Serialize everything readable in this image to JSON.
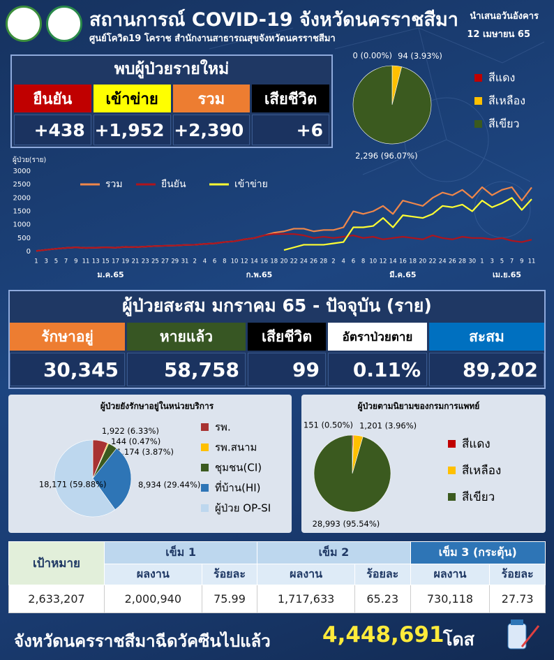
{
  "header": {
    "title": "สถานการณ์ COVID-19 จังหวัดนครราชสีมา",
    "subtitle": "ศูนย์โควิด19 โคราช สำนักงานสาธารณสุขจังหวัดนครราชสีมา",
    "date_label": "นำเสนอวันอังคาร",
    "date": "12 เมษายน 65"
  },
  "new_cases": {
    "title": "พบผู้ป่วยรายใหม่",
    "headers": [
      "ยืนยัน",
      "เข้าข่าย",
      "รวม",
      "เสียชีวิต"
    ],
    "values": [
      "+438",
      "+1,952",
      "+2,390",
      "+6"
    ]
  },
  "cumulative": {
    "title": "ผู้ป่วยสะสม มกราคม 65 - ปัจจุบัน (ราย)",
    "headers": [
      "รักษาอยู่",
      "หายแล้ว",
      "เสียชีวิต",
      "อัตราป่วยตาย",
      "สะสม"
    ],
    "values": [
      "30,345",
      "58,758",
      "99",
      "0.11%",
      "89,202"
    ]
  },
  "vaccine": {
    "target_label": "เป้าหมาย",
    "doses": [
      "เข็ม 1",
      "เข็ม 2",
      "เข็ม 3 (กระตุ้น)"
    ],
    "subheaders": [
      "ผลงาน",
      "ร้อยละ",
      "ผลงาน",
      "ร้อยละ",
      "ผลงาน",
      "ร้อยละ"
    ],
    "row": [
      "2,633,207",
      "2,000,940",
      "75.99",
      "1,717,633",
      "65.23",
      "730,118",
      "27.73"
    ]
  },
  "footer": {
    "text": "จังหวัดนครราชสีมาฉีดวัคซีนไปแล้ว",
    "total": "4,448,691",
    "unit": "โดส"
  },
  "chart_data": [
    {
      "type": "pie",
      "categories": [
        "สีแดง",
        "สีเหลือง",
        "สีเขียว"
      ],
      "values": [
        0,
        94,
        2296
      ],
      "value_labels": [
        "0 (0.00%)",
        "94 (3.93%)",
        "2,296 (96.07%)"
      ],
      "colors": [
        "#c00000",
        "#ffc000",
        "#3b5a1f"
      ]
    },
    {
      "type": "line",
      "y_label": "ผู้ป่วย(ราย)",
      "categories": [
        "1",
        "3",
        "5",
        "7",
        "9",
        "11",
        "13",
        "15",
        "17",
        "19",
        "21",
        "23",
        "25",
        "27",
        "29",
        "31",
        "2",
        "4",
        "6",
        "8",
        "10",
        "12",
        "14",
        "16",
        "18",
        "20",
        "22",
        "24",
        "26",
        "28",
        "2",
        "4",
        "6",
        "8",
        "10",
        "12",
        "14",
        "16",
        "18",
        "20",
        "22",
        "24",
        "26",
        "28",
        "30",
        "1",
        "3",
        "5",
        "7",
        "9",
        "11"
      ],
      "month_labels": [
        "ม.ค.65",
        "ก.พ.65",
        "มี.ค.65",
        "เม.ย.65"
      ],
      "series": [
        {
          "name": "รวม",
          "color": "#f0874a",
          "values": [
            20,
            60,
            100,
            130,
            150,
            130,
            140,
            150,
            140,
            170,
            160,
            180,
            200,
            210,
            220,
            240,
            250,
            280,
            300,
            350,
            380,
            450,
            500,
            600,
            700,
            750,
            850,
            850,
            750,
            800,
            800,
            900,
            1500,
            1400,
            1500,
            1700,
            1400,
            1900,
            1800,
            1700,
            2000,
            2200,
            2100,
            2300,
            2000,
            2400,
            2100,
            2300,
            2400,
            1900,
            2390
          ]
        },
        {
          "name": "ยืนยัน",
          "color": "#b0141c",
          "values": [
            20,
            60,
            100,
            130,
            150,
            130,
            140,
            150,
            140,
            170,
            160,
            180,
            200,
            210,
            220,
            240,
            250,
            280,
            300,
            350,
            380,
            450,
            500,
            600,
            650,
            650,
            650,
            600,
            500,
            550,
            500,
            550,
            600,
            500,
            550,
            450,
            500,
            550,
            500,
            450,
            600,
            500,
            450,
            550,
            500,
            500,
            450,
            500,
            400,
            350,
            438
          ]
        },
        {
          "name": "เข้าข่าย",
          "color": "#ffff33",
          "values": [
            null,
            null,
            null,
            null,
            null,
            null,
            null,
            null,
            null,
            null,
            null,
            null,
            null,
            null,
            null,
            null,
            null,
            null,
            null,
            null,
            null,
            null,
            null,
            null,
            null,
            50,
            150,
            250,
            250,
            250,
            300,
            350,
            900,
            900,
            950,
            1250,
            900,
            1350,
            1300,
            1250,
            1400,
            1700,
            1650,
            1750,
            1500,
            1900,
            1650,
            1800,
            2000,
            1550,
            1952
          ]
        }
      ],
      "ylim": [
        0,
        3000
      ],
      "yticks": [
        0,
        500,
        1000,
        1500,
        2000,
        2500,
        3000
      ],
      "grid": false
    },
    {
      "type": "pie",
      "title": "ผู้ป่วยยังรักษาอยู่ในหน่วยบริการ",
      "categories": [
        "รพ.",
        "รพ.สนาม",
        "ชุมชน(CI)",
        "ที่บ้าน(HI)",
        "ผู้ป่วย OP-SI"
      ],
      "values": [
        1922,
        144,
        1174,
        8934,
        18171
      ],
      "value_labels": [
        "1,922 (6.33%)",
        "144 (0.47%)",
        "1,174 (3.87%)",
        "8,934 (29.44%)",
        "18,171 (59.88%)"
      ],
      "colors": [
        "#a83232",
        "#ffc000",
        "#3b5a1f",
        "#2e75b6",
        "#bdd7ee"
      ]
    },
    {
      "type": "pie",
      "title": "ผู้ป่วยตามนิยามของกรมการแพทย์",
      "categories": [
        "สีแดง",
        "สีเหลือง",
        "สีเขียว"
      ],
      "values": [
        151,
        1201,
        28993
      ],
      "value_labels": [
        "151 (0.50%)",
        "1,201 (3.96%)",
        "28,993 (95.54%)"
      ],
      "colors": [
        "#c00000",
        "#ffc000",
        "#3b5a1f"
      ]
    }
  ]
}
